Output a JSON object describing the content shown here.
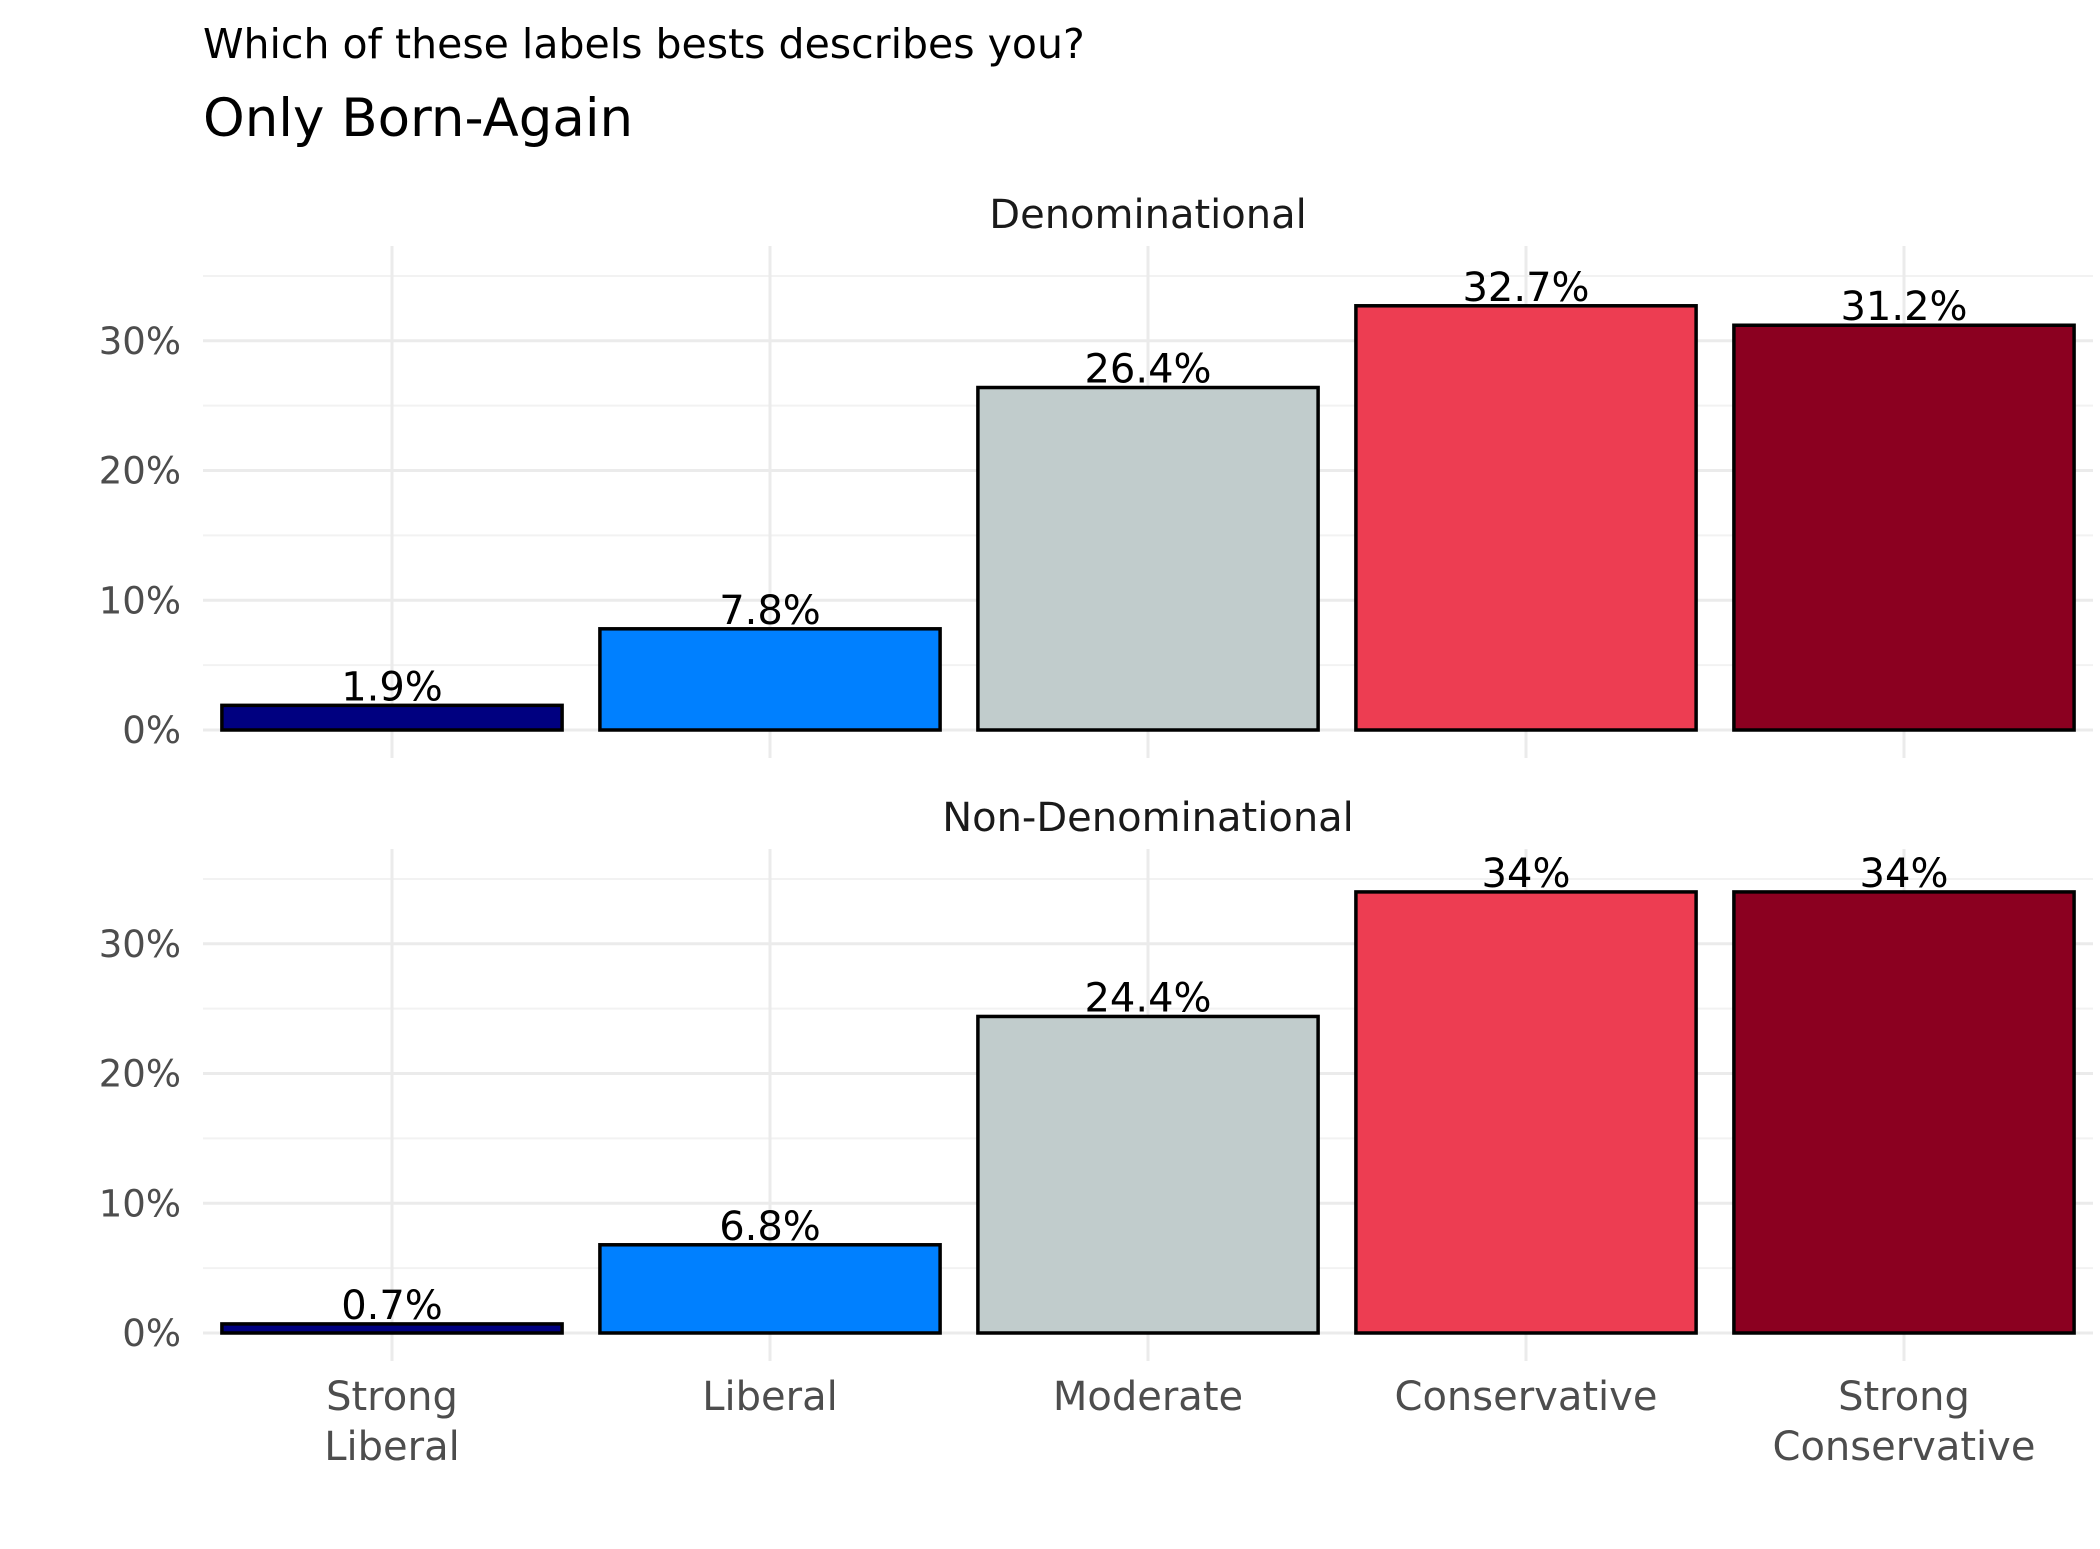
{
  "chart_data": {
    "type": "bar",
    "title": "Which of these labels bests describes you?",
    "subtitle": "Only Born-Again",
    "categories": [
      "Strong\nLiberal",
      "Liberal",
      "Moderate",
      "Conservative",
      "Strong\nConservative"
    ],
    "bar_colors": [
      "#000080",
      "#0080ff",
      "#c1cccc",
      "#ed3d52",
      "#8b0020"
    ],
    "y_ticks": [
      0,
      10,
      20,
      30
    ],
    "y_tick_labels": [
      "0%",
      "10%",
      "20%",
      "30%"
    ],
    "ylim": [
      0,
      37
    ],
    "grid": true,
    "facets": [
      {
        "name": "Denominational",
        "values": [
          1.9,
          7.8,
          26.4,
          32.7,
          31.2
        ],
        "labels": [
          "1.9%",
          "7.8%",
          "26.4%",
          "32.7%",
          "31.2%"
        ]
      },
      {
        "name": "Non-Denominational",
        "values": [
          0.7,
          6.8,
          24.4,
          34.0,
          34.0
        ],
        "labels": [
          "0.7%",
          "6.8%",
          "24.4%",
          "34%",
          "34%"
        ]
      }
    ]
  }
}
